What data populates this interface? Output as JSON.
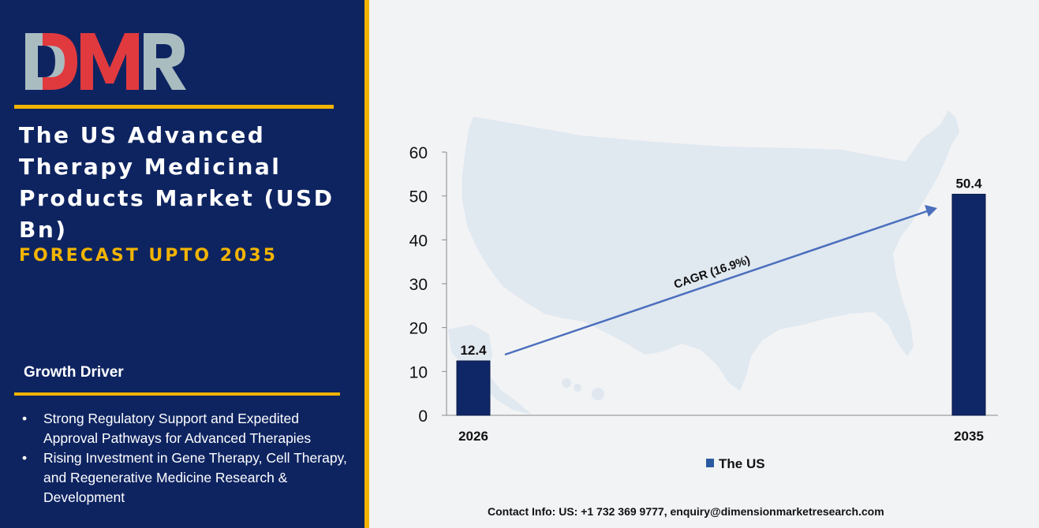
{
  "brand": {
    "logo_text": "DMR",
    "colors": {
      "navy": "#0e2461",
      "gold": "#f2b400",
      "logo_red": "#e03a3e",
      "logo_gray": "#a9bcc0",
      "bar": "#0f2766",
      "arrow": "#4b6fbd"
    }
  },
  "sidebar": {
    "title": "The US Advanced Therapy Medicinal Products Market (USD Bn)",
    "subtitle": "FORECAST UPTO 2035",
    "growth_heading": "Growth Driver",
    "drivers": [
      "Strong Regulatory Support and Expedited Approval Pathways for Advanced Therapies",
      "Rising Investment in Gene Therapy, Cell Therapy, and Regenerative Medicine Research & Development"
    ]
  },
  "chart_data": {
    "type": "bar",
    "categories": [
      "2026",
      "2035"
    ],
    "series": [
      {
        "name": "The US",
        "values": [
          12.4,
          50.4
        ]
      }
    ],
    "data_labels": [
      "12.4",
      "50.4"
    ],
    "ylim": [
      0,
      60
    ],
    "yticks": [
      0,
      10,
      20,
      30,
      40,
      50,
      60
    ],
    "xlabel": "",
    "ylabel": "",
    "annotation": "CAGR (16.9%)",
    "legend_position": "bottom",
    "grid": false,
    "background_image": "us-map"
  },
  "footer": {
    "contact": "Contact Info: US: +1 732 369 9777, enquiry@dimensionmarketresearch.com"
  }
}
